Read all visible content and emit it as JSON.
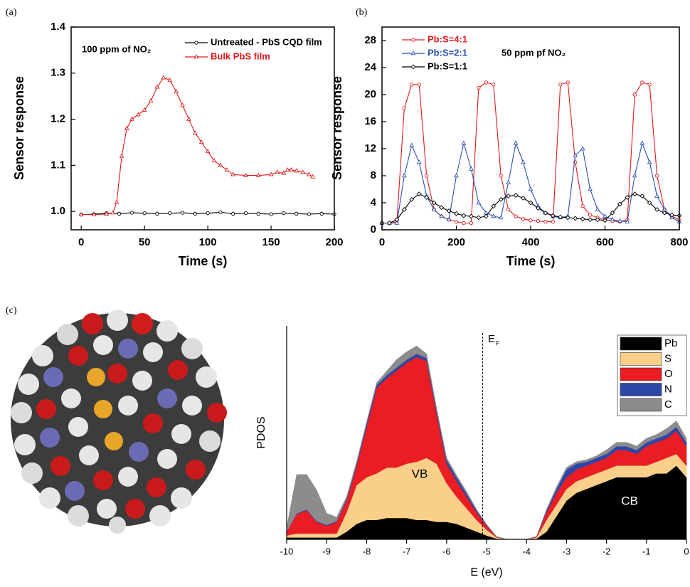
{
  "chart_data": [
    {
      "type": "line",
      "panel_label": "(a)",
      "annotation": "100 ppm of NO₂",
      "x_label": "Time (s)",
      "y_label": "Sensor response",
      "xlim": [
        -8,
        200
      ],
      "ylim": [
        0.96,
        1.4
      ],
      "box": true,
      "xticks": [
        0,
        50,
        100,
        150,
        200
      ],
      "yticks": [
        {
          "value": 1,
          "label": "1.0"
        },
        1.1,
        1.2,
        1.3,
        1.4
      ],
      "series": [
        {
          "name": "Untreated - PbS CQD film",
          "color": "#000000",
          "marker": "circle",
          "x": [
            0,
            10,
            20,
            30,
            40,
            50,
            60,
            70,
            80,
            90,
            100,
            110,
            120,
            130,
            140,
            150,
            160,
            170,
            180,
            190,
            200
          ],
          "values": [
            0.993,
            0.994,
            0.996,
            0.995,
            0.997,
            0.996,
            0.995,
            0.996,
            0.997,
            0.995,
            0.996,
            0.998,
            0.995,
            0.996,
            0.995,
            0.994,
            0.996,
            0.995,
            0.994,
            0.995,
            0.994
          ]
        },
        {
          "name": "Bulk PbS film",
          "color": "#e0191b",
          "marker": "triangle",
          "x": [
            0,
            10,
            20,
            25,
            28,
            32,
            36,
            40,
            45,
            50,
            55,
            60,
            65,
            70,
            75,
            80,
            85,
            90,
            95,
            100,
            105,
            110,
            115,
            120,
            130,
            140,
            150,
            155,
            160,
            163,
            166,
            170,
            175,
            180,
            183
          ],
          "values": [
            0.993,
            0.993,
            0.994,
            0.997,
            1.02,
            1.12,
            1.18,
            1.2,
            1.21,
            1.22,
            1.24,
            1.27,
            1.29,
            1.285,
            1.26,
            1.23,
            1.2,
            1.17,
            1.15,
            1.13,
            1.11,
            1.1,
            1.09,
            1.08,
            1.078,
            1.078,
            1.08,
            1.085,
            1.083,
            1.09,
            1.09,
            1.088,
            1.085,
            1.08,
            1.075
          ]
        }
      ]
    },
    {
      "type": "line",
      "panel_label": "(b)",
      "annotation": "50 ppm pf NO₂",
      "x_label": "Time (s)",
      "y_label": "Sensor response",
      "xlim": [
        0,
        800
      ],
      "ylim": [
        0,
        30
      ],
      "box": true,
      "xticks": [
        0,
        200,
        400,
        600,
        800
      ],
      "yticks": [
        0,
        4,
        8,
        12,
        16,
        20,
        24,
        28
      ],
      "x": [
        0,
        20,
        40,
        60,
        80,
        100,
        120,
        140,
        160,
        180,
        200,
        220,
        240,
        260,
        280,
        300,
        320,
        340,
        360,
        380,
        400,
        420,
        440,
        460,
        480,
        500,
        520,
        540,
        560,
        580,
        600,
        620,
        640,
        660,
        680,
        700,
        720,
        740,
        760,
        780,
        800
      ],
      "series": [
        {
          "name": "Pb:S=4:1",
          "color": "#e0191b",
          "marker": "circle",
          "values": [
            1,
            1,
            1.2,
            18,
            21.5,
            21.5,
            8,
            3,
            2,
            1.5,
            1.2,
            1,
            1,
            21,
            21.8,
            21.5,
            8,
            3,
            2,
            1.6,
            1.4,
            1.3,
            1.2,
            1.2,
            21.5,
            21.8,
            10,
            3.5,
            2.2,
            1.8,
            1.5,
            1.3,
            1.2,
            1.5,
            20,
            21.8,
            21.5,
            8,
            3,
            2,
            1.5
          ]
        },
        {
          "name": "Pb:S=2:1",
          "color": "#2b4fb3",
          "marker": "triangle",
          "values": [
            1,
            1,
            1,
            8,
            12.5,
            10,
            5,
            3,
            2,
            1.5,
            8,
            12.8,
            9,
            4,
            2.5,
            2,
            1.8,
            7,
            12.8,
            10,
            6,
            3.5,
            2.5,
            2,
            1.8,
            2,
            11,
            12,
            6,
            3,
            2,
            1.5,
            1.3,
            1.2,
            8,
            12.8,
            10,
            5,
            3,
            1.8,
            1.2
          ]
        },
        {
          "name": "Pb:S=1:1",
          "color": "#000000",
          "marker": "diamond",
          "values": [
            1,
            1,
            1.5,
            3,
            4.5,
            5.3,
            4.8,
            4,
            3.3,
            2.8,
            2.4,
            2.1,
            2,
            1.8,
            2,
            3.5,
            4.5,
            5,
            5.1,
            4.7,
            4,
            3.2,
            2.5,
            2.1,
            1.9,
            1.8,
            1.7,
            1.6,
            1.5,
            1.5,
            1.4,
            2.5,
            3.8,
            4.8,
            5.3,
            5,
            4,
            3,
            2.5,
            2.2,
            2.1
          ]
        }
      ]
    },
    {
      "type": "stacked_area",
      "panel_label": "(c)",
      "x_label": "E (eV)",
      "y_label": "PDOS",
      "xlim": [
        -10,
        0
      ],
      "ylim": [
        0,
        5.5
      ],
      "box": false,
      "xticks": [
        -10,
        -9,
        -8,
        -7,
        -6,
        -5,
        -4,
        -3,
        -2,
        -1,
        0
      ],
      "fermi_level": -5.1,
      "fermi_label": "E",
      "fermi_subscript": "F",
      "band_labels": [
        "VB",
        "CB"
      ],
      "x": [
        -10,
        -9.75,
        -9.5,
        -9.25,
        -9,
        -8.75,
        -8.5,
        -8.25,
        -8,
        -7.75,
        -7.5,
        -7.25,
        -7,
        -6.75,
        -6.5,
        -6.25,
        -6,
        -5.75,
        -5.5,
        -5.25,
        -5,
        -4.75,
        -4.5,
        -4.25,
        -4,
        -3.75,
        -3.5,
        -3.25,
        -3,
        -2.75,
        -2.5,
        -2.25,
        -2,
        -1.75,
        -1.5,
        -1.25,
        -1,
        -0.75,
        -0.5,
        -0.25,
        0
      ],
      "series": [
        {
          "name": "Pb",
          "color": "#000000",
          "values": [
            0.05,
            0.05,
            0.05,
            0.05,
            0.05,
            0.05,
            0.2,
            0.4,
            0.5,
            0.5,
            0.55,
            0.55,
            0.55,
            0.5,
            0.5,
            0.45,
            0.45,
            0.4,
            0.3,
            0.2,
            0.1,
            0.02,
            0,
            0,
            0,
            0.02,
            0.2,
            0.6,
            1.0,
            1.2,
            1.3,
            1.4,
            1.5,
            1.6,
            1.6,
            1.6,
            1.6,
            1.7,
            1.7,
            1.9,
            1.6
          ]
        },
        {
          "name": "S",
          "color": "#f9cf8a",
          "values": [
            0.05,
            0.1,
            0.1,
            0.1,
            0.1,
            0.1,
            0.5,
            1.0,
            1.1,
            1.2,
            1.3,
            1.3,
            1.4,
            1.5,
            1.6,
            1.5,
            1.0,
            0.7,
            0.5,
            0.3,
            0.15,
            0.03,
            0,
            0,
            0,
            0.03,
            0.3,
            0.3,
            0.3,
            0.3,
            0.3,
            0.3,
            0.3,
            0.3,
            0.3,
            0.3,
            0.3,
            0.3,
            0.4,
            0.3,
            0.3
          ]
        },
        {
          "name": "O",
          "color": "#ea1c24",
          "values": [
            0.1,
            0.5,
            0.6,
            0.3,
            0.2,
            0.3,
            0.3,
            0.5,
            1.3,
            2.2,
            2.3,
            2.5,
            2.6,
            2.7,
            2.5,
            1.3,
            0.5,
            0.4,
            0.3,
            0.2,
            0.1,
            0.02,
            0,
            0,
            0,
            0.02,
            0.2,
            0.3,
            0.3,
            0.3,
            0.3,
            0.3,
            0.3,
            0.4,
            0.4,
            0.3,
            0.5,
            0.5,
            0.5,
            0.6,
            0.5
          ]
        },
        {
          "name": "N",
          "color": "#2c47a8",
          "values": [
            0,
            0.02,
            0.02,
            0.02,
            0.02,
            0.02,
            0.05,
            0.05,
            0.08,
            0.08,
            0.08,
            0.08,
            0.08,
            0.08,
            0.08,
            0.08,
            0.1,
            0.1,
            0.08,
            0.05,
            0.02,
            0,
            0,
            0,
            0,
            0,
            0.05,
            0.1,
            0.2,
            0.15,
            0.1,
            0.1,
            0.1,
            0.1,
            0.1,
            0.1,
            0.1,
            0.1,
            0.1,
            0.1,
            0.1
          ]
        },
        {
          "name": "C",
          "color": "#8c8c8c",
          "values": [
            0.1,
            1.0,
            0.9,
            0.8,
            0.3,
            0.1,
            0.05,
            0.05,
            0.05,
            0.05,
            0.1,
            0.2,
            0.2,
            0.2,
            0.1,
            0.05,
            0.05,
            0.05,
            0.05,
            0.02,
            0.02,
            0,
            0,
            0,
            0,
            0,
            0.02,
            0.05,
            0.05,
            0.05,
            0.05,
            0.05,
            0.1,
            0.1,
            0.1,
            0.1,
            0.1,
            0.1,
            0.15,
            0.15,
            0.1
          ]
        }
      ]
    }
  ]
}
